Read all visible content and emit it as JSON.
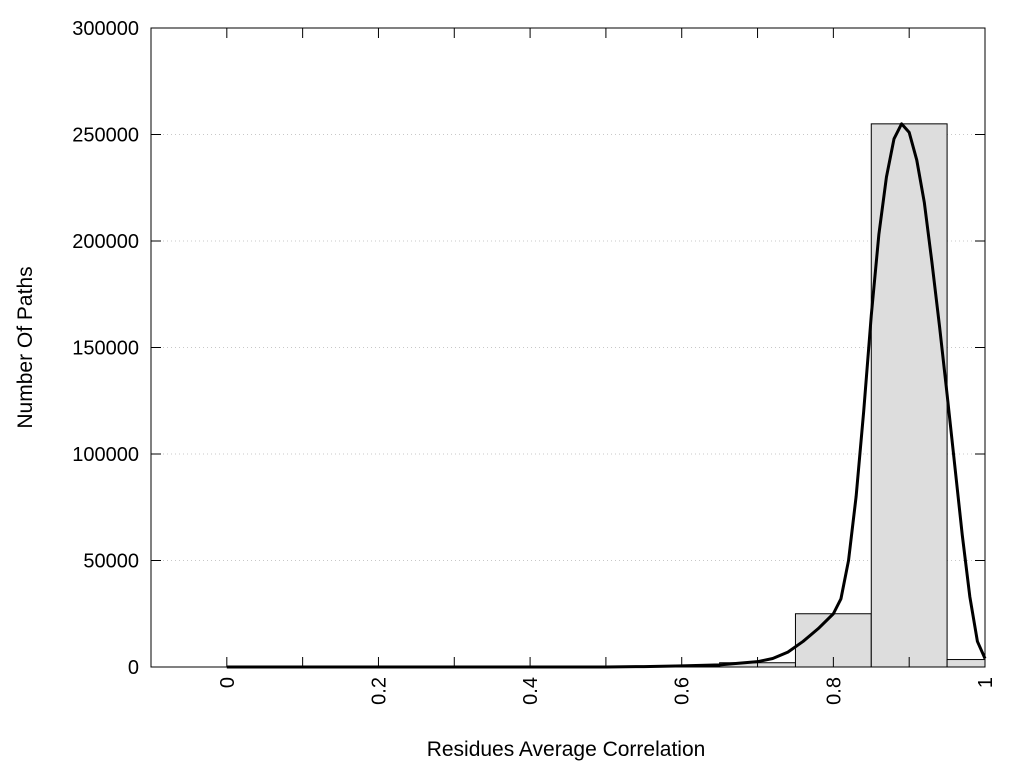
{
  "chart_data": {
    "type": "bar",
    "title": "",
    "xlabel": "Residues Average Correlation",
    "ylabel": "Number Of Paths",
    "xlim": [
      -0.1,
      1.0
    ],
    "ylim": [
      0,
      300000
    ],
    "grid": "horizontal-dotted",
    "legend": "none",
    "x_ticks": [
      "0",
      "0.2",
      "0.4",
      "0.6",
      "0.8",
      "1"
    ],
    "y_ticks": [
      "0",
      "50000",
      "100000",
      "150000",
      "200000",
      "250000",
      "300000"
    ],
    "bin_width": 0.1,
    "bars": [
      {
        "x": 0.0,
        "value": 0
      },
      {
        "x": 0.1,
        "value": 0
      },
      {
        "x": 0.2,
        "value": 0
      },
      {
        "x": 0.3,
        "value": 0
      },
      {
        "x": 0.4,
        "value": 0
      },
      {
        "x": 0.5,
        "value": 100
      },
      {
        "x": 0.6,
        "value": 300
      },
      {
        "x": 0.7,
        "value": 2000
      },
      {
        "x": 0.8,
        "value": 25000
      },
      {
        "x": 0.9,
        "value": 255000
      },
      {
        "x": 1.0,
        "value": 3500
      }
    ],
    "fit_curve": {
      "x": [
        0.0,
        0.5,
        0.55,
        0.6,
        0.65,
        0.7,
        0.72,
        0.74,
        0.76,
        0.78,
        0.8,
        0.81,
        0.82,
        0.83,
        0.84,
        0.85,
        0.86,
        0.87,
        0.88,
        0.89,
        0.9,
        0.91,
        0.92,
        0.93,
        0.94,
        0.95,
        0.96,
        0.97,
        0.98,
        0.99,
        1.0
      ],
      "y": [
        0,
        0,
        200,
        500,
        1000,
        2500,
        4000,
        7000,
        12000,
        18000,
        25000,
        32000,
        50000,
        80000,
        120000,
        165000,
        203000,
        230000,
        248000,
        255000,
        251000,
        238000,
        218000,
        190000,
        160000,
        128000,
        95000,
        62000,
        33000,
        12000,
        4000
      ]
    },
    "colors": {
      "bar_fill": "#dddddd",
      "bar_stroke": "#000000",
      "curve": "#000000",
      "grid": "#c8c8c8"
    }
  }
}
